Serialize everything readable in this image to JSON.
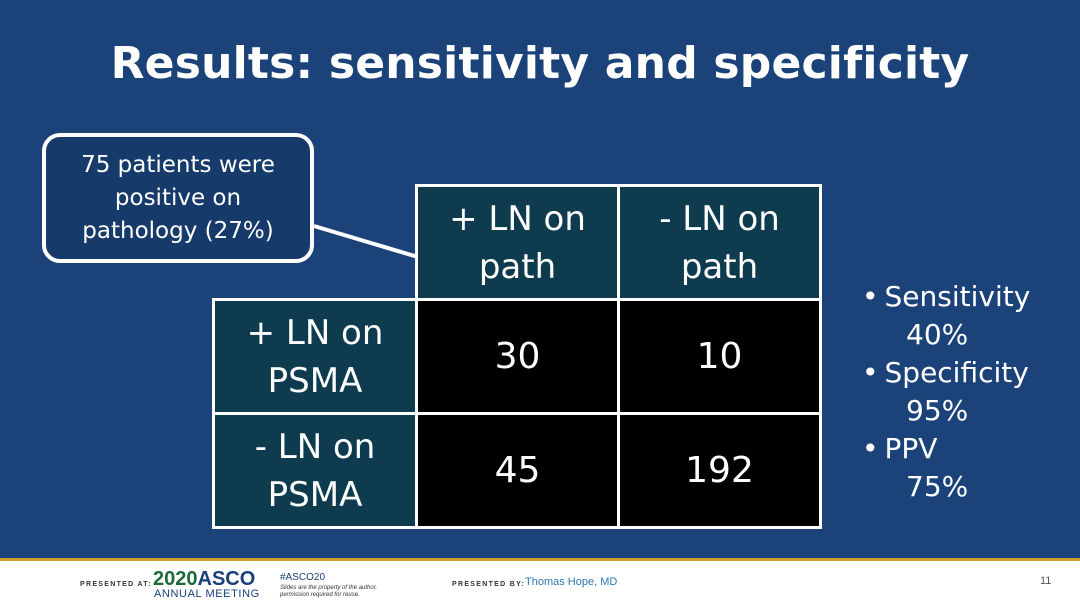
{
  "title": "Results: sensitivity and specificity",
  "callout": "75 patients were positive on pathology (27%)",
  "table": {
    "col_headers": [
      "+ LN on path",
      "- LN on path"
    ],
    "row_headers": [
      "+ LN on PSMA",
      "- LN on PSMA"
    ],
    "rows": [
      [
        "30",
        "10"
      ],
      [
        "45",
        "192"
      ]
    ]
  },
  "metrics": [
    {
      "label": "Sensitivity",
      "value": "40%"
    },
    {
      "label": "Specificity",
      "value": "95%"
    },
    {
      "label": "PPV",
      "value": "75%"
    }
  ],
  "footer": {
    "presented_at": "PRESENTED AT:",
    "year": "2020",
    "org": "ASCO",
    "meeting": "ANNUAL MEETING",
    "hashtag": "#ASCO20",
    "note": "Slides are the property of the author, permission required for reuse.",
    "presented_by": "PRESENTED BY:",
    "presenter": "Thomas Hope, MD",
    "page": "11"
  }
}
